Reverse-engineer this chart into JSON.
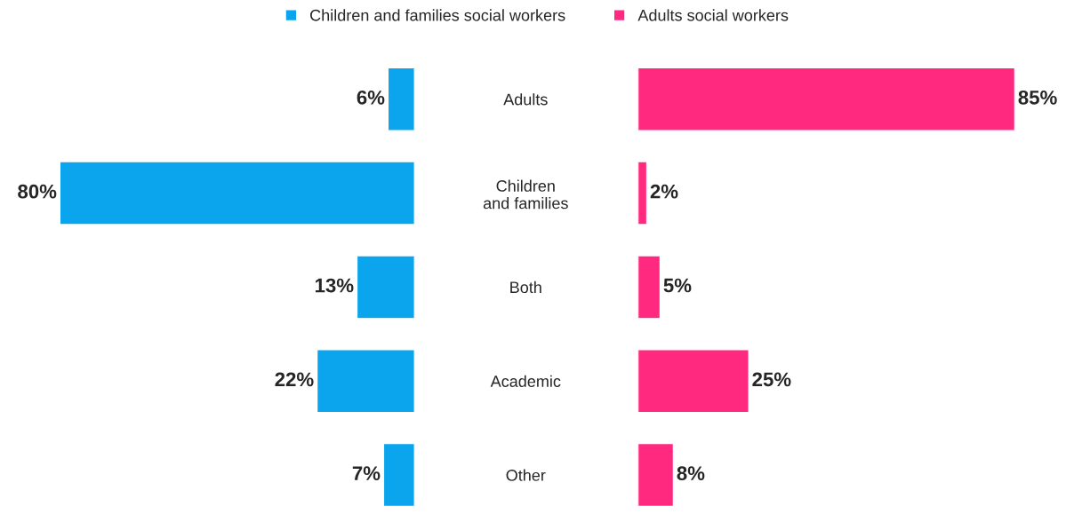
{
  "chart_data": [
    {
      "type": "bar",
      "orientation": "horizontal",
      "categories": [
        "Adults",
        "Children\nand families",
        "Both",
        "Academic",
        "Other"
      ],
      "series": [
        {
          "name": "Children and families social workers",
          "color": "#0aa5ec",
          "values": [
            6,
            80,
            13,
            22,
            7
          ],
          "value_labels": [
            "6%",
            "80%",
            "13%",
            "22%",
            "7%"
          ]
        }
      ],
      "tick_labels": "y",
      "legend": "top"
    },
    {
      "type": "bar",
      "orientation": "horizontal",
      "categories": [
        null,
        null,
        null,
        null,
        null
      ],
      "series": [
        {
          "name": "Adults social workers",
          "color": "#ff2a7f",
          "values": [
            85,
            2,
            5,
            25,
            8
          ],
          "value_labels": [
            "85%",
            "2%",
            "5%",
            "25%",
            "8%"
          ]
        }
      ],
      "tick_labels": false,
      "legend": "top"
    }
  ]
}
